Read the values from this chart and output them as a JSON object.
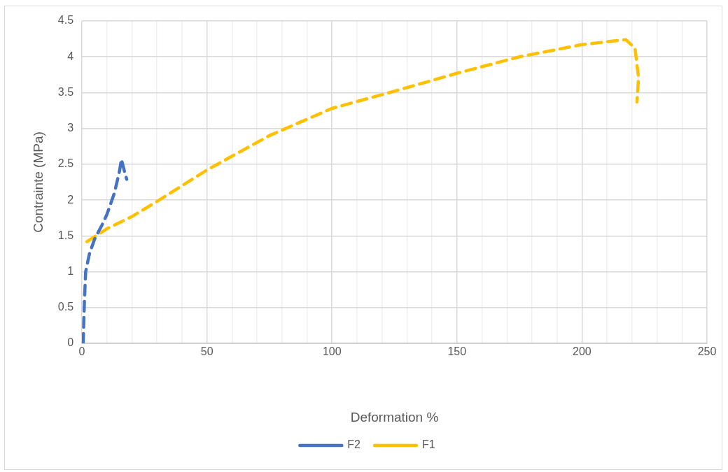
{
  "chart_data": {
    "type": "line",
    "xlabel": "Deformation %",
    "ylabel": "Contrainte (MPa)",
    "xlim": [
      0,
      250
    ],
    "xticks": [
      0,
      {
        "value": 10,
        "label": null
      },
      {
        "value": 20,
        "label": null
      },
      {
        "value": 30,
        "label": null
      },
      {
        "value": 40,
        "label": null
      },
      50,
      {
        "value": 60,
        "label": null
      },
      {
        "value": 70,
        "label": null
      },
      {
        "value": 80,
        "label": null
      },
      {
        "value": 90,
        "label": null
      },
      100,
      {
        "value": 110,
        "label": null
      },
      {
        "value": 120,
        "label": null
      },
      {
        "value": 130,
        "label": null
      },
      {
        "value": 140,
        "label": null
      },
      150,
      {
        "value": 160,
        "label": null
      },
      {
        "value": 170,
        "label": null
      },
      {
        "value": 180,
        "label": null
      },
      {
        "value": 190,
        "label": null
      },
      200,
      {
        "value": 210,
        "label": null
      },
      {
        "value": 220,
        "label": null
      },
      {
        "value": 230,
        "label": null
      },
      {
        "value": 240,
        "label": null
      },
      250
    ],
    "ylim": [
      0,
      4.5
    ],
    "yticks": [
      0,
      0.5,
      1,
      1.5,
      2,
      2.5,
      3,
      3.5,
      4,
      4.5
    ],
    "grid": true,
    "legend": "bottom",
    "marker": "none",
    "line_style": "dashed",
    "series": [
      {
        "name": "F2",
        "color": "#4472c4",
        "x": [
          0.5,
          1,
          1.5,
          3,
          5,
          8,
          10,
          13,
          15,
          15.8,
          17,
          17.9
        ],
        "values": [
          0,
          0.6,
          1.0,
          1.25,
          1.45,
          1.65,
          1.8,
          2.1,
          2.4,
          2.57,
          2.4,
          2.29
        ]
      },
      {
        "name": "F1",
        "color": "#ffc000",
        "x": [
          2,
          10,
          20,
          30,
          50,
          75,
          100,
          125,
          150,
          175,
          200,
          217.5,
          221.2,
          222.6,
          222
        ],
        "values": [
          1.42,
          1.6,
          1.77,
          1.98,
          2.42,
          2.9,
          3.28,
          3.52,
          3.77,
          4.0,
          4.17,
          4.24,
          4.12,
          3.71,
          3.37
        ]
      }
    ]
  }
}
